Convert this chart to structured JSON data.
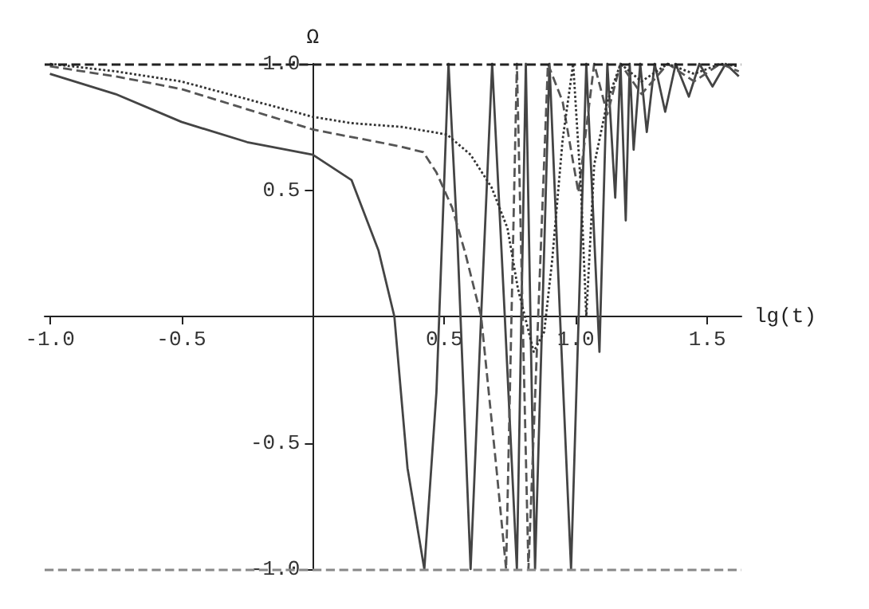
{
  "chart_data": {
    "type": "line",
    "xlabel": "lg(t)",
    "ylabel": "Ω",
    "xlim": [
      -1.02,
      1.63
    ],
    "ylim": [
      -1,
      1
    ],
    "xticks": [
      {
        "value": -1,
        "label": "-1.0"
      },
      -0.5,
      0.5,
      {
        "value": 1,
        "label": "1.0"
      },
      1.5
    ],
    "yticks": [
      {
        "value": -1,
        "label": "-1.0"
      },
      -0.5,
      0.5,
      {
        "value": 1,
        "label": "1.0"
      }
    ],
    "grid": false,
    "marker": "none",
    "ref_lines": [
      {
        "axis": "y",
        "value": 1,
        "color": "#222222",
        "line_style": "dashed"
      },
      {
        "axis": "y",
        "value": -1,
        "color": "#888888",
        "line_style": "dashed"
      }
    ],
    "series": [
      {
        "color": "#444444",
        "line_style": "solid",
        "x": [
          -1,
          -0.75,
          -0.5,
          -0.25,
          0,
          0.147,
          0.25,
          0.31,
          0.36,
          0.424,
          0.47,
          0.516,
          0.55,
          0.6,
          0.64,
          0.682,
          0.73,
          0.776,
          0.81,
          0.845,
          0.9,
          0.94,
          0.982,
          1.04,
          1.09,
          1.12,
          1.15,
          1.17,
          1.19,
          1.205,
          1.22,
          1.245,
          1.27,
          1.3,
          1.34,
          1.38,
          1.43,
          1.47,
          1.52,
          1.57,
          1.62
        ],
        "values": [
          0.96,
          0.88,
          0.77,
          0.69,
          0.64,
          0.54,
          0.26,
          0,
          -0.6,
          -1,
          -0.3,
          1,
          0.3,
          -1,
          0,
          1,
          0,
          -1,
          1,
          -1,
          1,
          0,
          -1,
          1,
          -0.14,
          1,
          0.47,
          1,
          0.38,
          1,
          0.66,
          1,
          0.73,
          1,
          0.81,
          1,
          0.87,
          1,
          0.91,
          1,
          0.95
        ]
      },
      {
        "color": "#555555",
        "line_style": "dashed",
        "x": [
          -1,
          -0.75,
          -0.5,
          -0.25,
          0,
          0.147,
          0.25,
          0.343,
          0.42,
          0.47,
          0.53,
          0.58,
          0.64,
          0.7,
          0.735,
          0.776,
          0.82,
          0.894,
          0.95,
          1.01,
          1.07,
          1.12,
          1.17,
          1.25,
          1.35,
          1.45,
          1.55,
          1.62
        ],
        "values": [
          0.99,
          0.95,
          0.9,
          0.82,
          0.74,
          0.71,
          0.69,
          0.67,
          0.65,
          0.57,
          0.43,
          0.25,
          0,
          -0.62,
          -1,
          1,
          -1,
          1,
          0.85,
          0.49,
          1,
          0.8,
          1,
          0.88,
          1,
          0.93,
          1,
          0.97
        ]
      },
      {
        "color": "#333333",
        "line_style": "dotted",
        "x": [
          -1,
          -0.75,
          -0.5,
          -0.25,
          0,
          0.147,
          0.34,
          0.51,
          0.6,
          0.68,
          0.74,
          0.78,
          0.84,
          0.88,
          0.91,
          0.95,
          0.99,
          1.02,
          1.04,
          1.07,
          1.12,
          1.17,
          1.25,
          1.35,
          1.45,
          1.55,
          1.62
        ],
        "values": [
          1,
          0.97,
          0.93,
          0.86,
          0.79,
          0.765,
          0.75,
          0.72,
          0.64,
          0.51,
          0.35,
          0.11,
          -0.14,
          -0.06,
          0.22,
          0.7,
          1,
          0.5,
          0,
          0.6,
          0.85,
          1,
          0.93,
          1,
          0.96,
          1,
          0.99
        ]
      }
    ]
  }
}
